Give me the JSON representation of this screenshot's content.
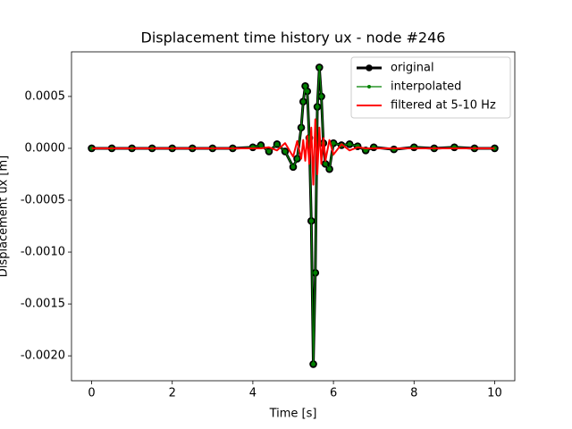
{
  "chart_data": {
    "type": "line",
    "title": "Displacement time history ux - node #246",
    "x_label": "Time [s]",
    "y_label": "Displacement ux [m]",
    "x": [
      0,
      0.5,
      1,
      1.5,
      2,
      2.5,
      3,
      3.5,
      4,
      4.2,
      4.4,
      4.6,
      4.8,
      5.0,
      5.1,
      5.2,
      5.25,
      5.3,
      5.35,
      5.4,
      5.45,
      5.5,
      5.55,
      5.6,
      5.65,
      5.7,
      5.75,
      5.8,
      5.9,
      6.0,
      6.2,
      6.4,
      6.6,
      6.8,
      7,
      7.5,
      8,
      8.5,
      9,
      9.5,
      10
    ],
    "series": [
      {
        "name": "original",
        "color": "black",
        "values": [
          0,
          0,
          0,
          0,
          0,
          0,
          0,
          0,
          1e-05,
          3e-05,
          -3e-05,
          4e-05,
          -3e-05,
          -0.00018,
          -0.0001,
          0.0002,
          0.00045,
          0.0006,
          0.00055,
          0.0001,
          -0.0007,
          -0.00208,
          -0.0012,
          0.0004,
          0.00078,
          0.0005,
          5e-05,
          -0.00015,
          -0.0002,
          5e-05,
          3e-05,
          4e-05,
          2e-05,
          -2e-05,
          1e-05,
          -1e-05,
          1e-05,
          0,
          1e-05,
          0,
          0
        ]
      },
      {
        "name": "interpolated",
        "color": "green",
        "values": [
          0,
          0,
          0,
          0,
          0,
          0,
          0,
          0,
          1e-05,
          3e-05,
          -3e-05,
          4e-05,
          -3e-05,
          -0.00018,
          -0.0001,
          0.0002,
          0.00045,
          0.0006,
          0.00055,
          0.0001,
          -0.0007,
          -0.00208,
          -0.0012,
          0.0004,
          0.00078,
          0.0005,
          5e-05,
          -0.00015,
          -0.0002,
          5e-05,
          3e-05,
          4e-05,
          2e-05,
          -2e-05,
          1e-05,
          -1e-05,
          1e-05,
          0,
          1e-05,
          0,
          0
        ]
      },
      {
        "name": "filtered at 5-10 Hz",
        "color": "red",
        "values": [
          0,
          0,
          0,
          0,
          0,
          0,
          0,
          0,
          0,
          0,
          1e-05,
          -2e-05,
          5e-05,
          -8e-05,
          7e-05,
          -0.0001,
          8e-05,
          -0.00012,
          0.00012,
          -0.00015,
          0.0002,
          -0.00035,
          0.00028,
          -0.00025,
          0.0002,
          -0.00015,
          0.0001,
          -0.00012,
          8e-05,
          -6e-05,
          4e-05,
          -2e-05,
          1e-05,
          0,
          0,
          0,
          0,
          0,
          0,
          0,
          0
        ]
      }
    ],
    "xlim": [
      -0.5,
      10.5
    ],
    "ylim": [
      -0.00224,
      0.00093
    ],
    "xticks": [
      0,
      2,
      4,
      6,
      8,
      10
    ],
    "yticks": [
      {
        "value": -0.002,
        "label": "-0.0020"
      },
      -0.0015,
      {
        "value": -0.001,
        "label": "-0.0010"
      },
      -0.0005,
      {
        "value": 0,
        "label": "0.0000"
      },
      0.0005
    ],
    "legend": "upper right"
  }
}
